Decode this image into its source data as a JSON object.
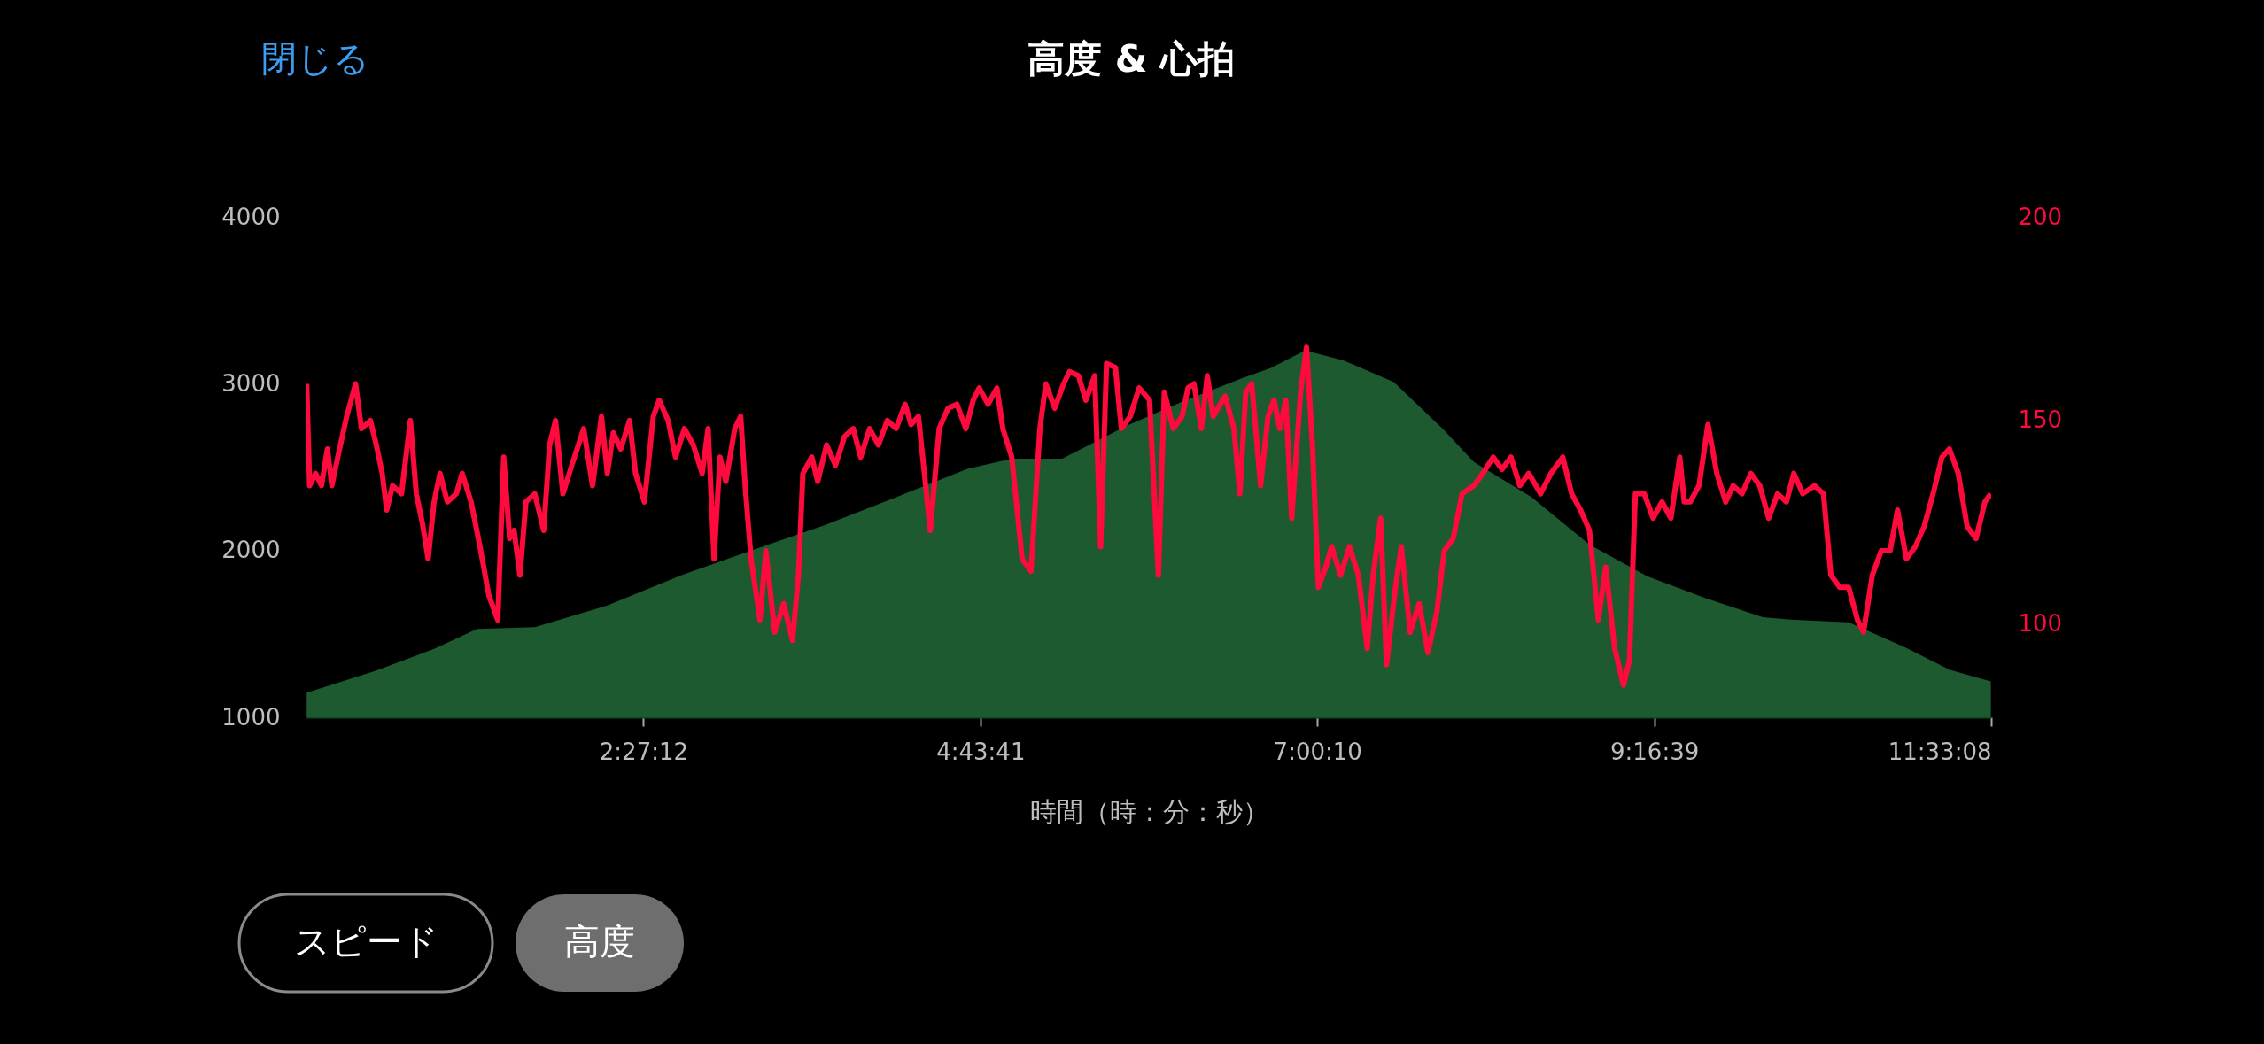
{
  "chart_data": {
    "type": "area",
    "title": "高度 & 心拍",
    "xlabel": "時間（時：分：秒）",
    "xlim": [
      0.1786,
      11.5522
    ],
    "xticks": [
      {
        "value": 2.4533,
        "label": "2:27:12"
      },
      {
        "value": 4.7281,
        "label": "4:43:41"
      },
      {
        "value": 7.0028,
        "label": "7:00:10"
      },
      {
        "value": 9.2775,
        "label": "9:16:39"
      },
      {
        "value": 11.5522,
        "label": "11:33:08"
      }
    ],
    "ylim": [
      1000,
      4000
    ],
    "yticks": [
      1000,
      2000,
      3000,
      4000
    ],
    "y2lim": [
      77.1,
      200
    ],
    "y2ticks": [
      100,
      150,
      200
    ],
    "series": [
      {
        "color": "#1d5a30",
        "x": [
          0.18,
          0.65,
          1.04,
          1.33,
          1.72,
          2.21,
          2.69,
          3.18,
          3.67,
          4.16,
          4.64,
          4.94,
          5.28,
          5.72,
          6.11,
          6.5,
          6.69,
          6.92,
          7.18,
          7.52,
          7.86,
          8.06,
          8.45,
          8.84,
          9.23,
          9.62,
          10.01,
          10.2,
          10.59,
          10.98,
          11.27,
          11.55
        ],
        "values": [
          1147,
          1280,
          1410,
          1530,
          1540,
          1670,
          1845,
          2000,
          2150,
          2320,
          2490,
          2550,
          2550,
          2750,
          2900,
          3035,
          3095,
          3200,
          3140,
          3010,
          2720,
          2530,
          2320,
          2035,
          1845,
          1715,
          1600,
          1585,
          1570,
          1415,
          1285,
          1215
        ]
      },
      {
        "type": "line",
        "axis": "y2",
        "color": "#ff0a3c",
        "x": [
          0.18,
          0.2,
          0.24,
          0.28,
          0.32,
          0.35,
          0.39,
          0.45,
          0.51,
          0.55,
          0.61,
          0.65,
          0.69,
          0.72,
          0.76,
          0.82,
          0.88,
          0.92,
          0.96,
          1.0,
          1.04,
          1.08,
          1.13,
          1.19,
          1.23,
          1.29,
          1.35,
          1.41,
          1.47,
          1.51,
          1.55,
          1.58,
          1.62,
          1.66,
          1.72,
          1.78,
          1.82,
          1.86,
          1.91,
          1.97,
          2.05,
          2.11,
          2.17,
          2.21,
          2.25,
          2.3,
          2.36,
          2.4,
          2.46,
          2.52,
          2.56,
          2.62,
          2.67,
          2.73,
          2.79,
          2.85,
          2.89,
          2.93,
          2.97,
          3.01,
          3.07,
          3.11,
          3.14,
          3.18,
          3.24,
          3.28,
          3.34,
          3.4,
          3.46,
          3.5,
          3.53,
          3.59,
          3.63,
          3.69,
          3.75,
          3.81,
          3.87,
          3.92,
          3.98,
          4.04,
          4.1,
          4.16,
          4.22,
          4.26,
          4.31,
          4.39,
          4.45,
          4.51,
          4.57,
          4.63,
          4.68,
          4.72,
          4.78,
          4.84,
          4.88,
          4.94,
          5.01,
          5.07,
          5.13,
          5.17,
          5.23,
          5.29,
          5.33,
          5.39,
          5.44,
          5.5,
          5.54,
          5.58,
          5.64,
          5.68,
          5.74,
          5.8,
          5.87,
          5.93,
          5.97,
          6.03,
          6.09,
          6.13,
          6.17,
          6.22,
          6.26,
          6.3,
          6.38,
          6.44,
          6.48,
          6.52,
          6.56,
          6.62,
          6.67,
          6.71,
          6.75,
          6.79,
          6.83,
          6.89,
          6.93,
          6.97,
          7.01,
          7.06,
          7.1,
          7.16,
          7.22,
          7.28,
          7.34,
          7.38,
          7.43,
          7.47,
          7.53,
          7.57,
          7.63,
          7.69,
          7.75,
          7.81,
          7.86,
          7.92,
          7.98,
          8.06,
          8.12,
          8.19,
          8.25,
          8.31,
          8.37,
          8.43,
          8.51,
          8.58,
          8.66,
          8.72,
          8.78,
          8.84,
          8.9,
          8.95,
          9.01,
          9.07,
          9.11,
          9.15,
          9.21,
          9.27,
          9.33,
          9.39,
          9.45,
          9.48,
          9.52,
          9.58,
          9.64,
          9.7,
          9.76,
          9.81,
          9.87,
          9.93,
          9.99,
          10.05,
          10.11,
          10.17,
          10.22,
          10.28,
          10.36,
          10.42,
          10.47,
          10.53,
          10.59,
          10.65,
          10.69,
          10.75,
          10.81,
          10.87,
          10.92,
          10.98,
          11.04,
          11.1,
          11.16,
          11.22,
          11.27,
          11.33,
          11.39,
          11.45,
          11.51,
          11.55
        ],
        "values": [
          159,
          134,
          137,
          134,
          143,
          134,
          141,
          151,
          159,
          148,
          150,
          144,
          137,
          128,
          134,
          132,
          150,
          132,
          125,
          116,
          130,
          137,
          130,
          132,
          137,
          130,
          119,
          107,
          101,
          141,
          121,
          123,
          112,
          130,
          132,
          123,
          144,
          150,
          132,
          139,
          148,
          134,
          151,
          137,
          147,
          143,
          150,
          137,
          130,
          151,
          155,
          150,
          141,
          148,
          144,
          137,
          148,
          116,
          141,
          135,
          148,
          151,
          134,
          116,
          101,
          118,
          98,
          105,
          96,
          112,
          137,
          141,
          135,
          144,
          139,
          146,
          148,
          141,
          148,
          144,
          150,
          148,
          154,
          149,
          151,
          123,
          148,
          153,
          154,
          148,
          155,
          158,
          154,
          158,
          148,
          141,
          116,
          113,
          148,
          159,
          153,
          159,
          162,
          161,
          155,
          161,
          119,
          164,
          163,
          148,
          151,
          158,
          155,
          112,
          157,
          148,
          151,
          158,
          159,
          148,
          161,
          151,
          156,
          148,
          132,
          157,
          159,
          134,
          151,
          155,
          148,
          155,
          126,
          157,
          168,
          144,
          109,
          114,
          119,
          112,
          119,
          112,
          94,
          112,
          126,
          90,
          109,
          119,
          98,
          105,
          93,
          103,
          118,
          121,
          132,
          134,
          137,
          141,
          138,
          141,
          134,
          137,
          132,
          137,
          141,
          132,
          128,
          123,
          101,
          114,
          94,
          85,
          91,
          132,
          132,
          126,
          130,
          126,
          141,
          130,
          130,
          134,
          149,
          137,
          130,
          134,
          132,
          137,
          134,
          126,
          132,
          130,
          137,
          132,
          134,
          132,
          112,
          109,
          109,
          101,
          98,
          112,
          118,
          118,
          128,
          116,
          119,
          124,
          132,
          141,
          143,
          137,
          124,
          121,
          130,
          132
        ]
      }
    ],
    "annotations": [
      "閉じる",
      "スピード",
      "高度"
    ]
  }
}
